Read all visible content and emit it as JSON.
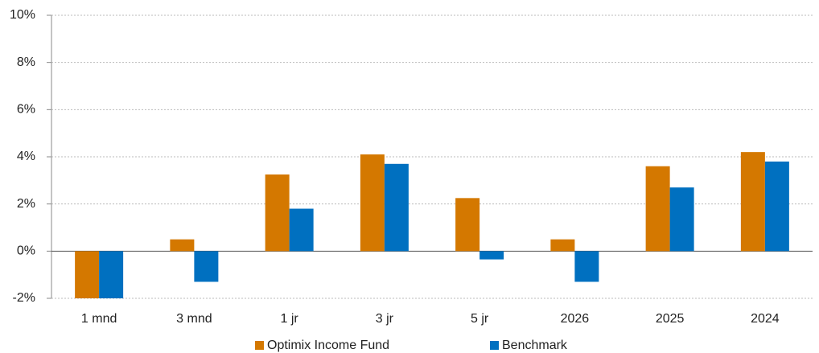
{
  "chart_data": {
    "type": "bar",
    "categories": [
      "1 mnd",
      "3 mnd",
      "1 jr",
      "3 jr",
      "5 jr",
      "2026",
      "2025",
      "2024"
    ],
    "series": [
      {
        "name": "Optimix Income Fund",
        "color": "#d47800",
        "values": [
          -2.0,
          0.5,
          3.25,
          4.1,
          2.25,
          0.5,
          3.6,
          4.2
        ]
      },
      {
        "name": "Benchmark",
        "color": "#0070c0",
        "values": [
          -2.0,
          -1.3,
          1.8,
          3.7,
          -0.35,
          -1.3,
          2.7,
          3.8
        ]
      }
    ],
    "ylim": [
      -2,
      10
    ],
    "yticks": [
      {
        "value": -2,
        "label": "-2%"
      },
      {
        "value": 0,
        "label": "0%"
      },
      {
        "value": 2,
        "label": "2%"
      },
      {
        "value": 4,
        "label": "4%"
      },
      {
        "value": 6,
        "label": "6%"
      },
      {
        "value": 8,
        "label": "8%"
      },
      {
        "value": 10,
        "label": "10%"
      }
    ],
    "grid": true,
    "legend": "bottom"
  }
}
